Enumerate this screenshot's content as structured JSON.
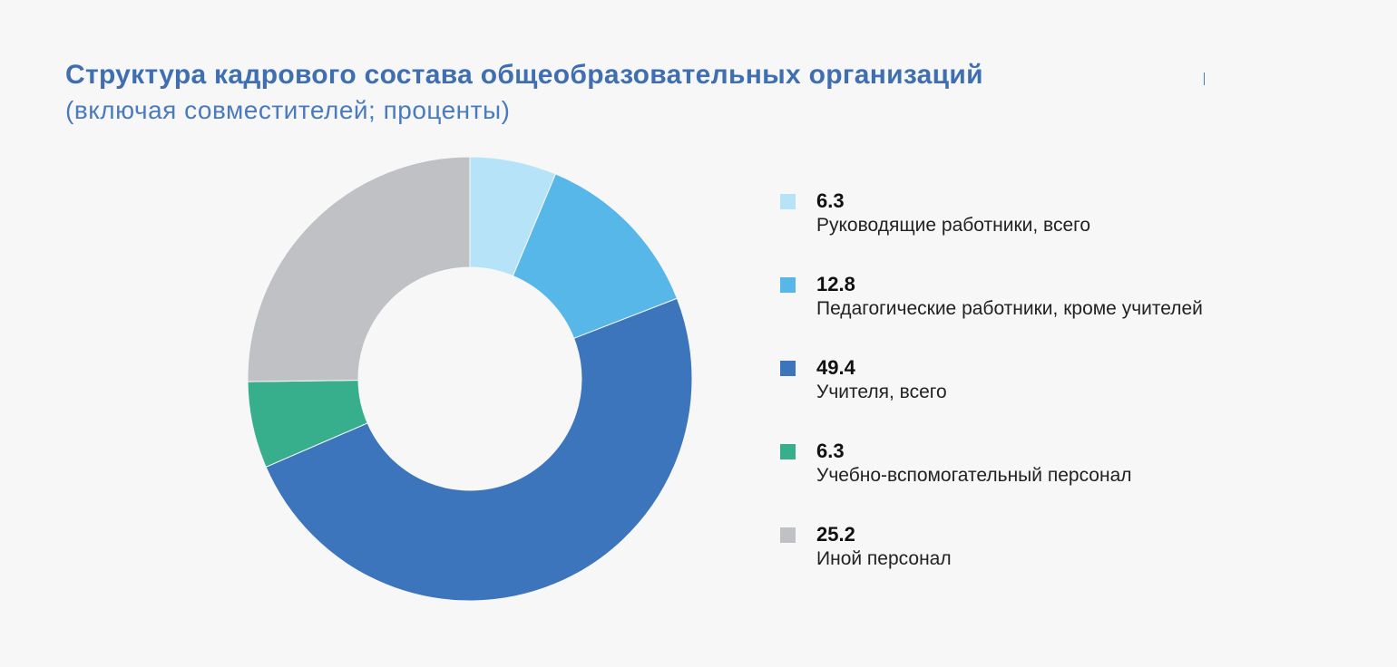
{
  "header": {
    "title": "Структура кадрового состава общеобразовательных организаций",
    "subtitle": "(включая совместителей; проценты)"
  },
  "chart_data": {
    "type": "pie",
    "variant": "donut",
    "start_angle": "12 o'clock",
    "direction": "clockwise",
    "legend_position": "right",
    "slices": [
      {
        "label": "Руководящие работники, всего",
        "value": 6.3,
        "value_text": "6.3",
        "color": "#b7e3f8"
      },
      {
        "label": "Педагогические работники, кроме учителей",
        "value": 12.8,
        "value_text": "12.8",
        "color": "#56b7e8"
      },
      {
        "label": "Учителя, всего",
        "value": 49.4,
        "value_text": "49.4",
        "color": "#3c75bb"
      },
      {
        "label": "Учебно-вспомогательный персонал",
        "value": 6.3,
        "value_text": "6.3",
        "color": "#37ae8c"
      },
      {
        "label": "Иной персонал",
        "value": 25.2,
        "value_text": "25.2",
        "color": "#bfc1c4"
      }
    ]
  }
}
